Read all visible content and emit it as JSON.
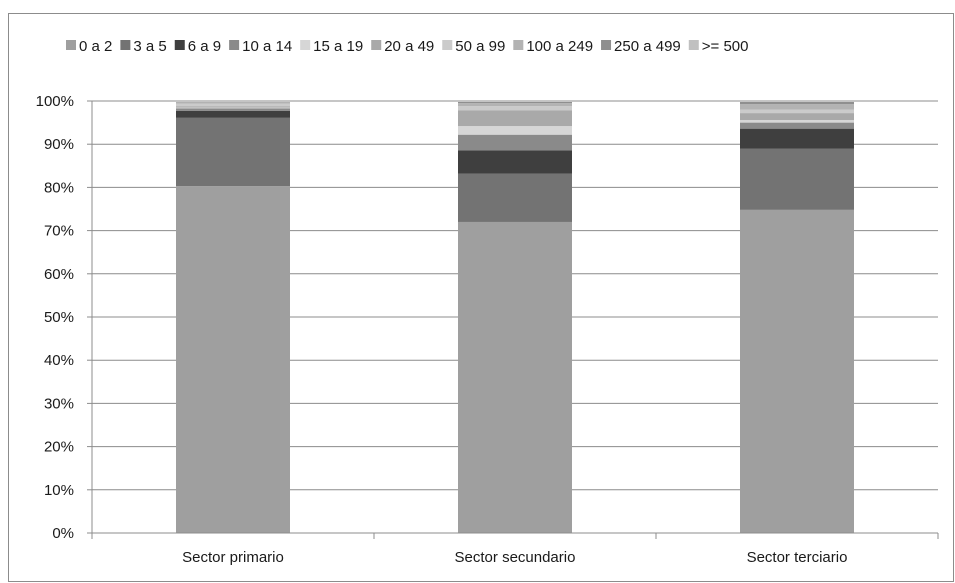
{
  "chart_data": {
    "type": "bar",
    "stacked": true,
    "title": "",
    "xlabel": "",
    "ylabel": "",
    "ylim": [
      0,
      100
    ],
    "yticks": [
      "0%",
      "10%",
      "20%",
      "30%",
      "40%",
      "50%",
      "60%",
      "70%",
      "80%",
      "90%",
      "100%"
    ],
    "grid": true,
    "legend_position": "top",
    "categories": [
      "Sector primario",
      "Sector secundario",
      "Sector terciario"
    ],
    "series": [
      {
        "name": "0 a 2",
        "color": "#9f9f9f",
        "values": [
          80.3,
          72.0,
          74.8
        ]
      },
      {
        "name": "3 a 5",
        "color": "#737373",
        "values": [
          15.8,
          11.2,
          14.2
        ]
      },
      {
        "name": "6 a 9",
        "color": "#3f3f3f",
        "values": [
          1.6,
          5.4,
          4.6
        ]
      },
      {
        "name": "10 a 14",
        "color": "#8a8a8a",
        "values": [
          0.6,
          3.6,
          1.4
        ]
      },
      {
        "name": "15 a 19",
        "color": "#d6d6d6",
        "values": [
          0.2,
          2.0,
          0.6
        ]
      },
      {
        "name": "20 a 49",
        "color": "#a9a9a9",
        "values": [
          0.3,
          3.6,
          1.6
        ]
      },
      {
        "name": "50 a 99",
        "color": "#cbcbcb",
        "values": [
          0.6,
          1.0,
          0.8
        ]
      },
      {
        "name": "100 a 249",
        "color": "#b3b3b3",
        "values": [
          0.3,
          0.7,
          1.3
        ]
      },
      {
        "name": "250 a 499",
        "color": "#8f8f8f",
        "values": [
          0.1,
          0.3,
          0.5
        ]
      },
      {
        "name": ">= 500",
        "color": "#c0c0c0",
        "values": [
          0.2,
          0.2,
          0.2
        ]
      }
    ]
  }
}
